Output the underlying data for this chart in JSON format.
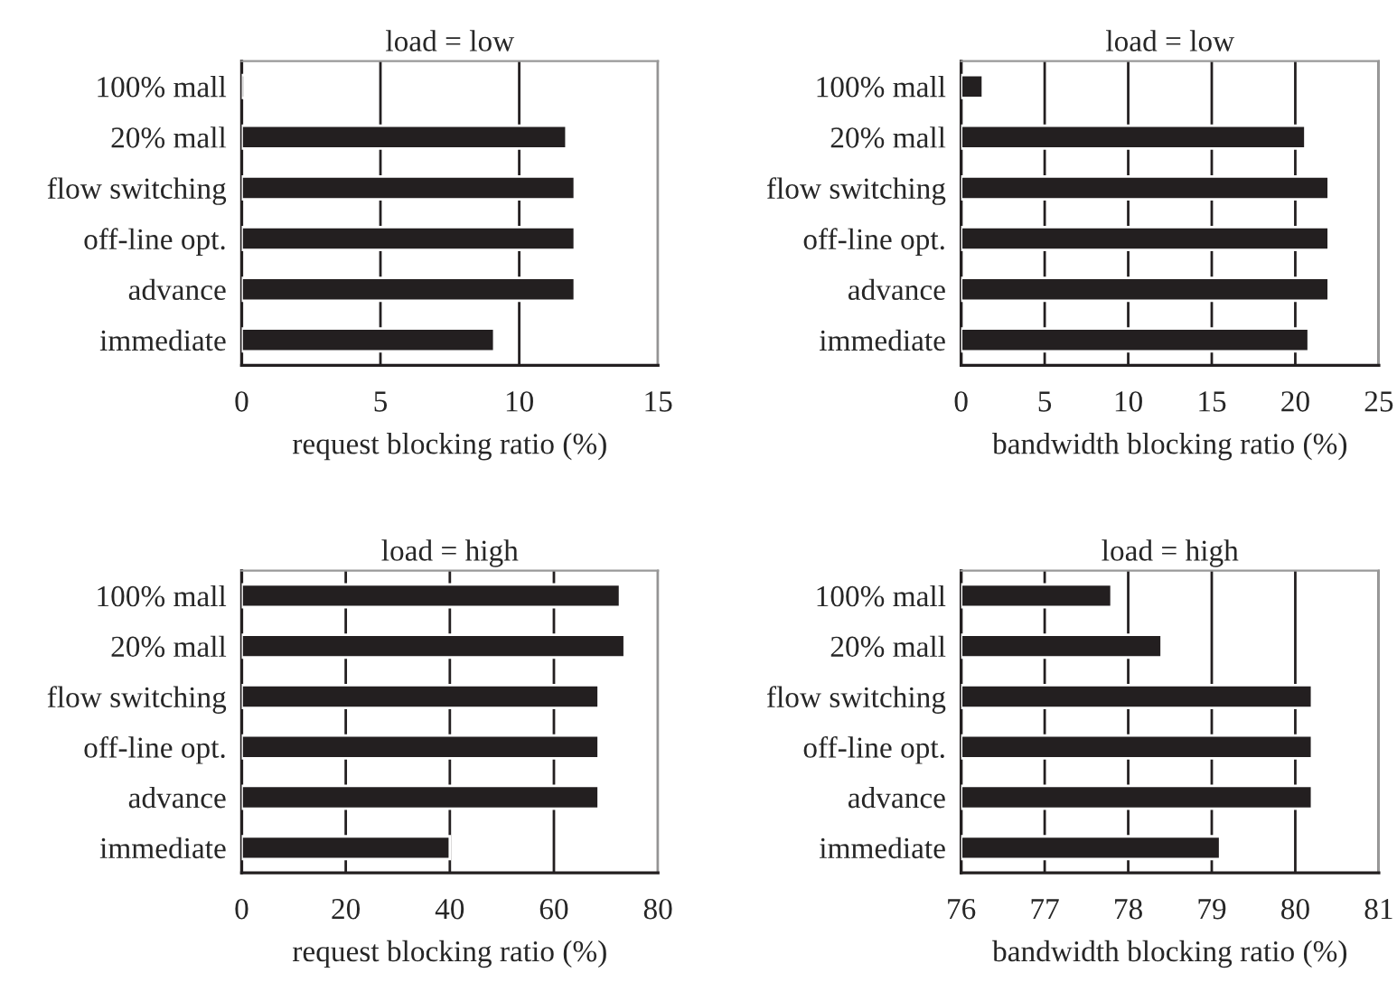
{
  "chart_data": [
    {
      "type": "bar",
      "orientation": "horizontal",
      "title": "load = low",
      "xlabel": "request blocking ratio (%)",
      "categories": [
        "100% mall",
        "20% mall",
        "flow switching",
        "off-line opt.",
        "advance",
        "immediate"
      ],
      "values": [
        0.1,
        11.7,
        12.0,
        12.0,
        12.0,
        9.1
      ],
      "color": "#231f20",
      "xlim": [
        0,
        15
      ],
      "xticks": [
        0,
        5,
        10,
        15
      ],
      "grid": "x"
    },
    {
      "type": "bar",
      "orientation": "horizontal",
      "title": "load = low",
      "xlabel": "bandwidth blocking ratio (%)",
      "categories": [
        "100% mall",
        "20% mall",
        "flow switching",
        "off-line opt.",
        "advance",
        "immediate"
      ],
      "values": [
        1.3,
        20.6,
        22.0,
        22.0,
        22.0,
        20.8
      ],
      "color": "#231f20",
      "xlim": [
        0,
        25
      ],
      "xticks": [
        0,
        5,
        10,
        15,
        20,
        25
      ],
      "grid": "x"
    },
    {
      "type": "bar",
      "orientation": "horizontal",
      "title": "load = high",
      "xlabel": "request blocking ratio (%)",
      "categories": [
        "100% mall",
        "20% mall",
        "flow switching",
        "off-line opt.",
        "advance",
        "immediate"
      ],
      "values": [
        72.7,
        73.6,
        68.6,
        68.6,
        68.6,
        40.0
      ],
      "color": "#231f20",
      "xlim": [
        0,
        80
      ],
      "xticks": [
        0,
        20,
        40,
        60,
        80
      ],
      "grid": "x"
    },
    {
      "type": "bar",
      "orientation": "horizontal",
      "title": "load = high",
      "xlabel": "bandwidth blocking ratio (%)",
      "categories": [
        "100% mall",
        "20% mall",
        "flow switching",
        "off-line opt.",
        "advance",
        "immediate"
      ],
      "values": [
        77.8,
        78.4,
        80.2,
        80.2,
        80.2,
        79.1
      ],
      "color": "#231f20",
      "xlim": [
        76,
        81
      ],
      "xticks": [
        76,
        77,
        78,
        79,
        80,
        81
      ],
      "grid": "x"
    }
  ]
}
